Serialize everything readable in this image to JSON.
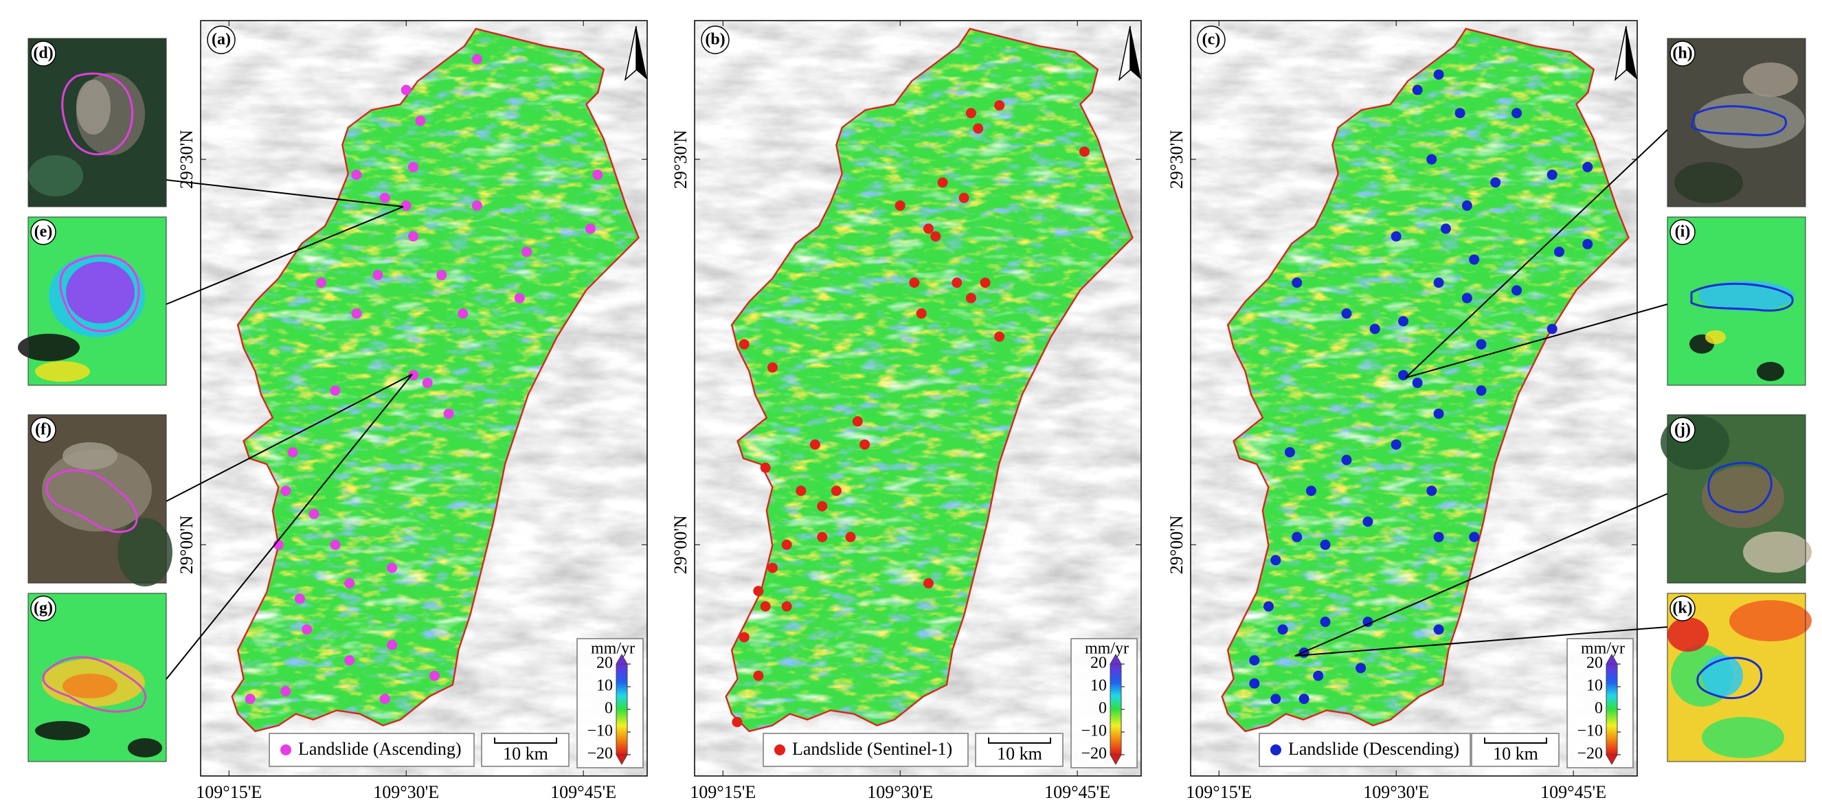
{
  "chart_data": [
    {
      "type": "map",
      "label": "(a)",
      "xlim": [
        109.21,
        109.84
      ],
      "ylim": [
        28.7,
        29.68
      ],
      "xticks": [
        {
          "value": 109.25,
          "label": "109°15'E"
        },
        {
          "value": 109.5,
          "label": "109°30'E"
        },
        {
          "value": 109.75,
          "label": "109°45'E"
        }
      ],
      "yticks": [
        {
          "value": 29.5,
          "label": "29°30'N"
        },
        {
          "value": 29,
          "label": "29°00'N"
        }
      ],
      "series": [
        {
          "name": "Landslide (Ascending)",
          "color": "#e63ee6",
          "x": [
            109.5,
            109.6,
            109.52,
            109.51,
            109.43,
            109.47,
            109.5,
            109.6,
            109.51,
            109.67,
            109.77,
            109.76,
            109.38,
            109.46,
            109.55,
            109.43,
            109.58,
            109.66,
            109.51,
            109.53,
            109.56,
            109.4,
            109.34,
            109.33,
            109.37,
            109.32,
            109.4,
            109.48,
            109.35,
            109.42,
            109.36,
            109.42,
            109.48,
            109.54,
            109.28,
            109.33,
            109.47
          ],
          "values": [
            29.59,
            29.63,
            29.55,
            29.49,
            29.48,
            29.45,
            29.44,
            29.44,
            29.4,
            29.38,
            29.48,
            29.41,
            29.34,
            29.35,
            29.35,
            29.3,
            29.3,
            29.32,
            29.22,
            29.21,
            29.17,
            29.2,
            29.12,
            29.07,
            29.04,
            29.0,
            29.0,
            28.97,
            28.93,
            28.95,
            28.89,
            28.85,
            28.87,
            28.83,
            28.8,
            28.81,
            28.8
          ]
        }
      ],
      "colorbar": {
        "label": "mm/yr",
        "lim": [
          -20,
          20
        ],
        "ticks": [
          20,
          10,
          0,
          {
            "value": -10,
            "label": "−10"
          },
          {
            "value": -20,
            "label": "−20"
          }
        ]
      },
      "scalebar": "10 km"
    },
    {
      "type": "map",
      "label": "(b)",
      "xlim": [
        109.21,
        109.84
      ],
      "ylim": [
        28.7,
        29.68
      ],
      "xticks": [
        {
          "value": 109.25,
          "label": "109°15'E"
        },
        {
          "value": 109.5,
          "label": "109°30'E"
        },
        {
          "value": 109.75,
          "label": "109°45'E"
        }
      ],
      "yticks": [
        {
          "value": 29.5,
          "label": "29°30'N"
        },
        {
          "value": 29,
          "label": "29°00'N"
        }
      ],
      "series": [
        {
          "name": "Landslide (Sentinel-1)",
          "color": "#e32018",
          "x": [
            109.6,
            109.64,
            109.61,
            109.76,
            109.5,
            109.54,
            109.55,
            109.56,
            109.59,
            109.52,
            109.53,
            109.58,
            109.62,
            109.6,
            109.64,
            109.28,
            109.32,
            109.31,
            109.38,
            109.45,
            109.44,
            109.41,
            109.36,
            109.39,
            109.34,
            109.39,
            109.43,
            109.32,
            109.31,
            109.34,
            109.28,
            109.3,
            109.27,
            109.54,
            109.3
          ],
          "values": [
            29.56,
            29.57,
            29.54,
            29.51,
            29.44,
            29.41,
            29.4,
            29.47,
            29.45,
            29.34,
            29.3,
            29.34,
            29.34,
            29.32,
            29.27,
            29.26,
            29.23,
            29.1,
            29.13,
            29.13,
            29.16,
            29.07,
            29.07,
            29.05,
            29.0,
            29.01,
            29.01,
            28.97,
            28.92,
            28.92,
            28.88,
            28.83,
            28.77,
            28.95,
            28.94
          ]
        }
      ],
      "colorbar": {
        "label": "mm/yr",
        "lim": [
          -20,
          20
        ],
        "ticks": [
          20,
          10,
          0,
          {
            "value": -10,
            "label": "−10"
          },
          {
            "value": -20,
            "label": "−20"
          }
        ]
      },
      "scalebar": "10 km"
    },
    {
      "type": "map",
      "label": "(c)",
      "xlim": [
        109.21,
        109.84
      ],
      "ylim": [
        28.7,
        29.68
      ],
      "xticks": [
        {
          "value": 109.25,
          "label": "109°15'E"
        },
        {
          "value": 109.5,
          "label": "109°30'E"
        },
        {
          "value": 109.75,
          "label": "109°45'E"
        }
      ],
      "yticks": [
        {
          "value": 29.5,
          "label": "29°30'N"
        },
        {
          "value": 29,
          "label": "29°00'N"
        }
      ],
      "series": [
        {
          "name": "Landslide (Descending)",
          "color": "#1525d0",
          "x": [
            109.53,
            109.56,
            109.59,
            109.67,
            109.55,
            109.6,
            109.64,
            109.72,
            109.77,
            109.5,
            109.57,
            109.61,
            109.36,
            109.43,
            109.47,
            109.51,
            109.56,
            109.6,
            109.67,
            109.73,
            109.77,
            109.62,
            109.72,
            109.51,
            109.53,
            109.56,
            109.62,
            109.35,
            109.38,
            109.43,
            109.5,
            109.55,
            109.36,
            109.4,
            109.46,
            109.56,
            109.61,
            109.33,
            109.32,
            109.34,
            109.4,
            109.46,
            109.56,
            109.3,
            109.37,
            109.45,
            109.3,
            109.33,
            109.37,
            109.39
          ],
          "values": [
            29.59,
            29.61,
            29.56,
            29.56,
            29.5,
            29.44,
            29.47,
            29.48,
            29.49,
            29.4,
            29.41,
            29.37,
            29.34,
            29.3,
            29.28,
            29.29,
            29.34,
            29.32,
            29.33,
            29.38,
            29.39,
            29.26,
            29.28,
            29.22,
            29.21,
            29.17,
            29.2,
            29.12,
            29.07,
            29.11,
            29.13,
            29.07,
            29.01,
            29.0,
            29.03,
            29.01,
            29.01,
            28.98,
            28.92,
            28.89,
            28.9,
            28.9,
            28.89,
            28.85,
            28.86,
            28.84,
            28.82,
            28.8,
            28.8,
            28.83
          ]
        }
      ],
      "colorbar": {
        "label": "mm/yr",
        "lim": [
          -20,
          20
        ],
        "ticks": [
          20,
          10,
          0,
          {
            "value": -10,
            "label": "−10"
          },
          {
            "value": -20,
            "label": "−20"
          }
        ]
      },
      "scalebar": "10 km"
    }
  ],
  "insets": [
    {
      "label": "(d)"
    },
    {
      "label": "(e)"
    },
    {
      "label": "(f)"
    },
    {
      "label": "(g)"
    },
    {
      "label": "(h)"
    },
    {
      "label": "(i)"
    },
    {
      "label": "(j)"
    },
    {
      "label": "(k)"
    }
  ]
}
